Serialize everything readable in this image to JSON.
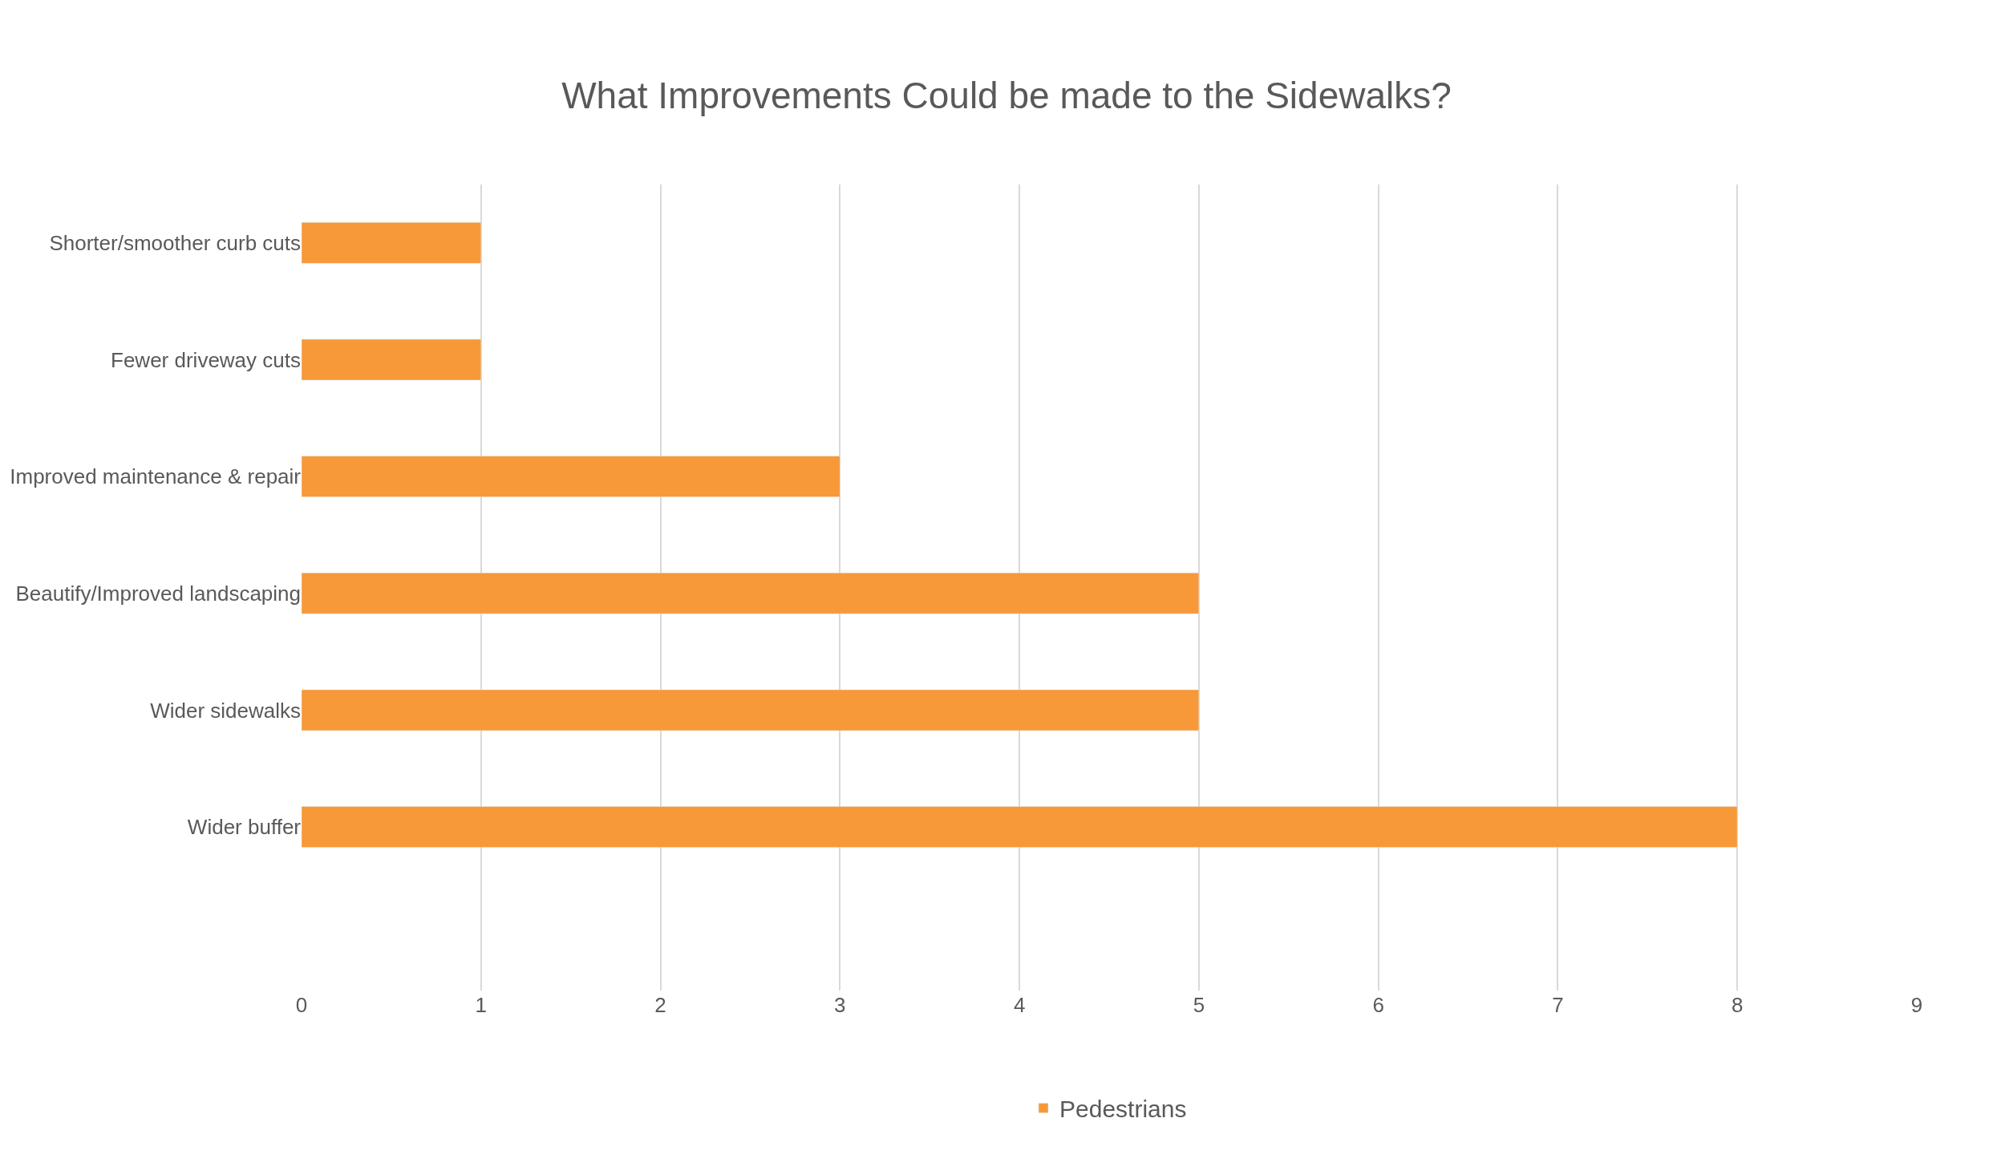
{
  "chart_data": {
    "type": "bar",
    "orientation": "horizontal",
    "title": "What Improvements Could be made to the Sidewalks?",
    "categories": [
      "Shorter/smoother curb cuts",
      "Fewer driveway cuts",
      "Improved maintenance & repair",
      "Beautify/Improved landscaping",
      "Wider sidewalks",
      "Wider buffer"
    ],
    "series": [
      {
        "name": "Pedestrians",
        "color": "#f79939",
        "values": [
          1,
          1,
          3,
          5,
          5,
          8
        ]
      }
    ],
    "xlim": [
      0,
      9
    ],
    "xticks": [
      0,
      1,
      2,
      3,
      4,
      5,
      6,
      7,
      8,
      9
    ],
    "grid": "x",
    "legend": "bottom"
  }
}
